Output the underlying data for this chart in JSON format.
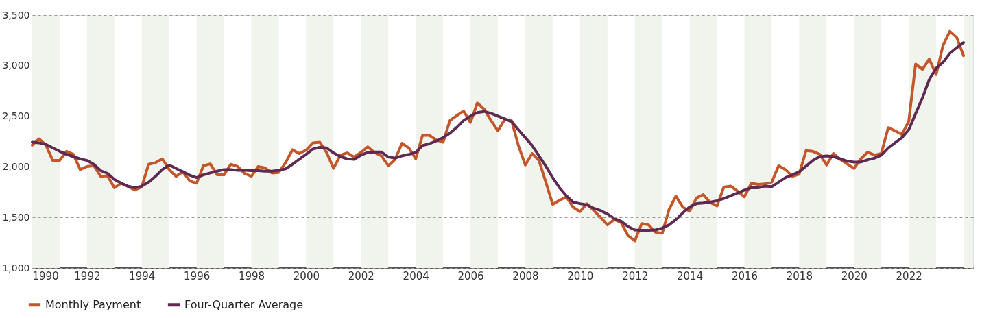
{
  "chart_data": {
    "type": "line",
    "x": [
      1990,
      1990.25,
      1990.5,
      1990.75,
      1991,
      1991.25,
      1991.5,
      1991.75,
      1992,
      1992.25,
      1992.5,
      1992.75,
      1993,
      1993.25,
      1993.5,
      1993.75,
      1994,
      1994.25,
      1994.5,
      1994.75,
      1995,
      1995.25,
      1995.5,
      1995.75,
      1996,
      1996.25,
      1996.5,
      1996.75,
      1997,
      1997.25,
      1997.5,
      1997.75,
      1998,
      1998.25,
      1998.5,
      1998.75,
      1999,
      1999.25,
      1999.5,
      1999.75,
      2000,
      2000.25,
      2000.5,
      2000.75,
      2001,
      2001.25,
      2001.5,
      2001.75,
      2002,
      2002.25,
      2002.5,
      2002.75,
      2003,
      2003.25,
      2003.5,
      2003.75,
      2004,
      2004.25,
      2004.5,
      2004.75,
      2005,
      2005.25,
      2005.5,
      2005.75,
      2006,
      2006.25,
      2006.5,
      2006.75,
      2007,
      2007.25,
      2007.5,
      2007.75,
      2008,
      2008.25,
      2008.5,
      2008.75,
      2009,
      2009.25,
      2009.5,
      2009.75,
      2010,
      2010.25,
      2010.5,
      2010.75,
      2011,
      2011.25,
      2011.5,
      2011.75,
      2012,
      2012.25,
      2012.5,
      2012.75,
      2013,
      2013.25,
      2013.5,
      2013.75,
      2014,
      2014.25,
      2014.5,
      2014.75,
      2015,
      2015.25,
      2015.5,
      2015.75,
      2016,
      2016.25,
      2016.5,
      2016.75,
      2017,
      2017.25,
      2017.5,
      2017.75,
      2018,
      2018.25,
      2018.5,
      2018.75,
      2019,
      2019.25,
      2019.5,
      2019.75,
      2020,
      2020.25,
      2020.5,
      2020.75,
      2021,
      2021.25,
      2021.5,
      2021.75,
      2022,
      2022.25,
      2022.5,
      2022.75,
      2023,
      2023.25,
      2023.5,
      2023.75,
      2024
    ],
    "series": [
      {
        "name": "Monthly Payment",
        "color": "#c4562a",
        "values": [
          2214,
          2277,
          2214,
          2063,
          2063,
          2153,
          2124,
          1973,
          2003,
          2011,
          1906,
          1912,
          1793,
          1838,
          1804,
          1771,
          1804,
          2025,
          2041,
          2079,
          1973,
          1906,
          1951,
          1861,
          1838,
          2011,
          2029,
          1921,
          1921,
          2025,
          2003,
          1935,
          1906,
          2003,
          1989,
          1939,
          1944,
          2041,
          2169,
          2131,
          2165,
          2237,
          2243,
          2140,
          1985,
          2115,
          2138,
          2097,
          2142,
          2198,
          2142,
          2108,
          2011,
          2074,
          2232,
          2187,
          2079,
          2311,
          2311,
          2266,
          2243,
          2457,
          2507,
          2552,
          2439,
          2631,
          2570,
          2457,
          2356,
          2469,
          2457,
          2210,
          2018,
          2131,
          2063,
          1849,
          1629,
          1669,
          1703,
          1600,
          1557,
          1635,
          1568,
          1500,
          1426,
          1478,
          1449,
          1320,
          1268,
          1439,
          1426,
          1354,
          1343,
          1579,
          1710,
          1602,
          1561,
          1692,
          1725,
          1647,
          1613,
          1800,
          1809,
          1759,
          1703,
          1838,
          1827,
          1831,
          1849,
          2011,
          1973,
          1906,
          1928,
          2160,
          2153,
          2124,
          2018,
          2131,
          2074,
          2029,
          1984,
          2079,
          2146,
          2115,
          2131,
          2387,
          2356,
          2320,
          2450,
          3016,
          2964,
          3065,
          2912,
          3200,
          3340,
          3279,
          3099
        ]
      },
      {
        "name": "Four-Quarter Average",
        "color": "#5e2a52",
        "values": [
          2243,
          2237,
          2221,
          2187,
          2153,
          2124,
          2101,
          2079,
          2063,
          2025,
          1962,
          1935,
          1876,
          1838,
          1809,
          1793,
          1809,
          1849,
          1906,
          1973,
          2018,
          1984,
          1951,
          1917,
          1894,
          1921,
          1939,
          1957,
          1973,
          1973,
          1966,
          1966,
          1962,
          1962,
          1957,
          1957,
          1966,
          1980,
          2025,
          2074,
          2124,
          2176,
          2192,
          2187,
          2138,
          2101,
          2079,
          2074,
          2115,
          2142,
          2146,
          2146,
          2097,
          2086,
          2108,
          2124,
          2142,
          2210,
          2228,
          2255,
          2288,
          2333,
          2390,
          2457,
          2502,
          2536,
          2547,
          2529,
          2502,
          2475,
          2446,
          2367,
          2288,
          2210,
          2108,
          2007,
          1894,
          1793,
          1714,
          1651,
          1636,
          1624,
          1590,
          1568,
          1534,
          1489,
          1462,
          1410,
          1376,
          1372,
          1372,
          1376,
          1394,
          1426,
          1478,
          1545,
          1602,
          1636,
          1642,
          1651,
          1665,
          1687,
          1714,
          1741,
          1770,
          1793,
          1793,
          1809,
          1804,
          1849,
          1894,
          1921,
          1951,
          2007,
          2063,
          2101,
          2108,
          2101,
          2079,
          2056,
          2047,
          2047,
          2070,
          2086,
          2115,
          2187,
          2237,
          2288,
          2367,
          2525,
          2682,
          2863,
          2975,
          3032,
          3122,
          3178,
          3228
        ]
      }
    ],
    "xlim": [
      1990,
      2024.35
    ],
    "xticks": [
      1990,
      1992,
      1994,
      1996,
      1998,
      2000,
      2002,
      2004,
      2006,
      2008,
      2010,
      2012,
      2014,
      2016,
      2018,
      2020,
      2022
    ],
    "ylim": [
      1000,
      3500
    ],
    "yticks": [
      {
        "value": 1000,
        "label": "1,000"
      },
      {
        "value": 1500,
        "label": "1,500"
      },
      {
        "value": 2000,
        "label": "2,000"
      },
      {
        "value": 2500,
        "label": "2,500"
      },
      {
        "value": 3000,
        "label": "3,000"
      },
      {
        "value": 3500,
        "label": "3,500"
      }
    ],
    "bands": [
      {
        "axis": "x",
        "from": 1990,
        "to": 1991,
        "color": "#f0f4ec"
      },
      {
        "axis": "x",
        "from": 1992,
        "to": 1993,
        "color": "#f0f4ec"
      },
      {
        "axis": "x",
        "from": 1994,
        "to": 1995,
        "color": "#f0f4ec"
      },
      {
        "axis": "x",
        "from": 1996,
        "to": 1997,
        "color": "#f0f4ec"
      },
      {
        "axis": "x",
        "from": 1998,
        "to": 1999,
        "color": "#f0f4ec"
      },
      {
        "axis": "x",
        "from": 2000,
        "to": 2001,
        "color": "#f0f4ec"
      },
      {
        "axis": "x",
        "from": 2002,
        "to": 2003,
        "color": "#f0f4ec"
      },
      {
        "axis": "x",
        "from": 2004,
        "to": 2005,
        "color": "#f0f4ec"
      },
      {
        "axis": "x",
        "from": 2006,
        "to": 2007,
        "color": "#f0f4ec"
      },
      {
        "axis": "x",
        "from": 2008,
        "to": 2009,
        "color": "#f0f4ec"
      },
      {
        "axis": "x",
        "from": 2010,
        "to": 2011,
        "color": "#f0f4ec"
      },
      {
        "axis": "x",
        "from": 2012,
        "to": 2013,
        "color": "#f0f4ec"
      },
      {
        "axis": "x",
        "from": 2014,
        "to": 2015,
        "color": "#f0f4ec"
      },
      {
        "axis": "x",
        "from": 2016,
        "to": 2017,
        "color": "#f0f4ec"
      },
      {
        "axis": "x",
        "from": 2018,
        "to": 2019,
        "color": "#f0f4ec"
      },
      {
        "axis": "x",
        "from": 2020,
        "to": 2021,
        "color": "#f0f4ec"
      },
      {
        "axis": "x",
        "from": 2022,
        "to": 2023,
        "color": "#f0f4ec"
      },
      {
        "axis": "x",
        "from": 2024,
        "to": 2024.35,
        "color": "#f0f4ec"
      }
    ],
    "grid": "y",
    "legend": "bottom",
    "marker": "none",
    "line_style": "solid"
  }
}
